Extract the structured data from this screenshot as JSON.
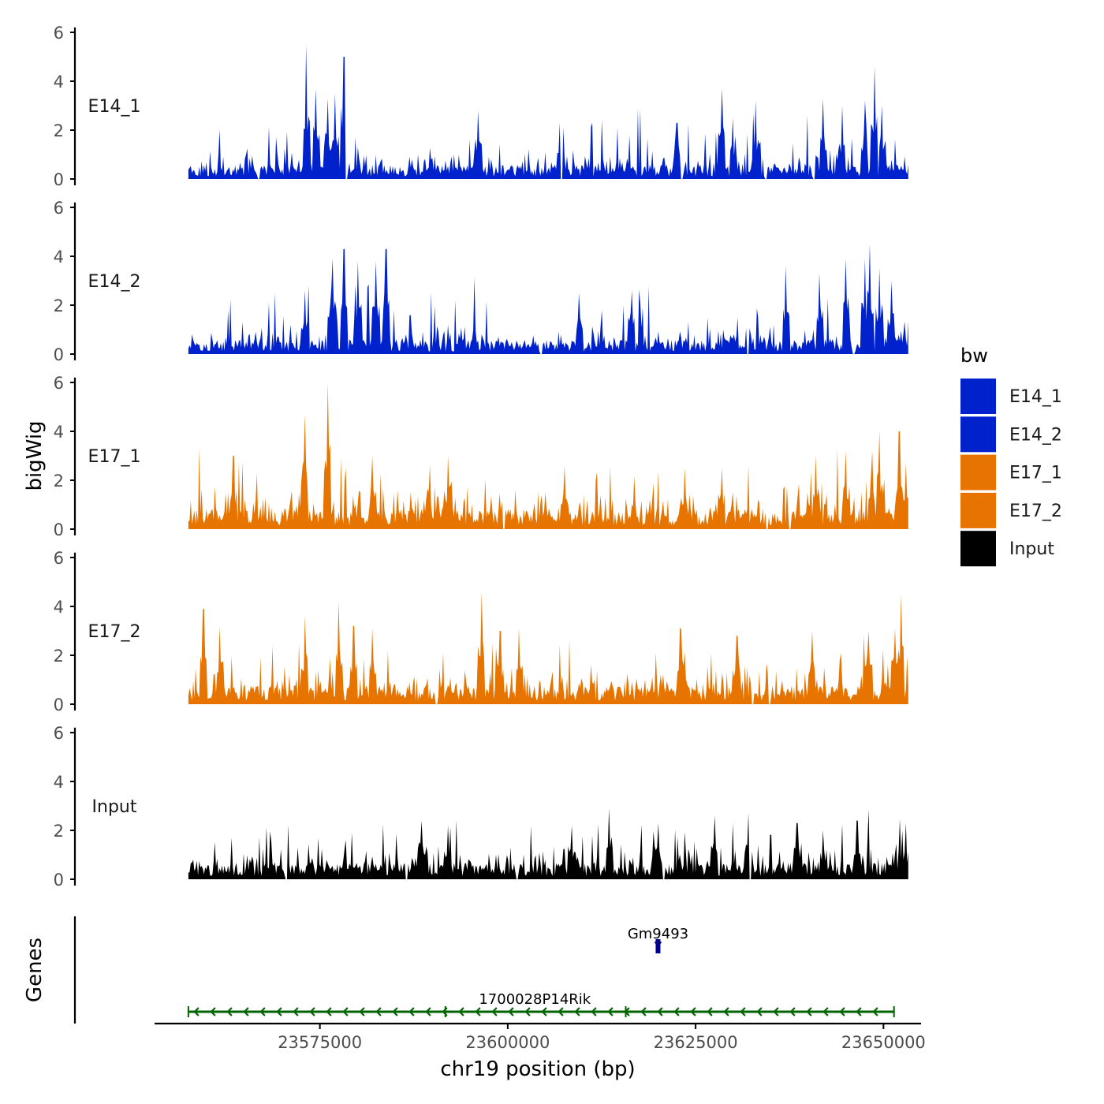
{
  "chart_data": {
    "type": "area",
    "layout": "stacked-tracks",
    "y_title": "bigWig",
    "x_title": "chr19 position (bp)",
    "y_ticks": [
      0,
      2,
      4,
      6
    ],
    "ylim": [
      0,
      6.2
    ],
    "xlim": [
      23553000,
      23655000
    ],
    "x_ticks": [
      23575000,
      23600000,
      23625000,
      23650000
    ],
    "x_tick_labels": [
      "23575000",
      "23600000",
      "23625000",
      "23650000"
    ],
    "data_range": [
      23557500,
      23653300
    ],
    "tracks": [
      {
        "name": "E14_1",
        "color": "#0022CC",
        "seed": 11,
        "base": 0.7,
        "peaks": [
          {
            "x": 23573200,
            "y": 5.5
          },
          {
            "x": 23578200,
            "y": 5.0
          },
          {
            "x": 23574500,
            "y": 3.7
          },
          {
            "x": 23576000,
            "y": 3.3
          },
          {
            "x": 23577000,
            "y": 3.5
          },
          {
            "x": 23596000,
            "y": 2.8
          },
          {
            "x": 23607000,
            "y": 2.3
          },
          {
            "x": 23622500,
            "y": 2.3
          },
          {
            "x": 23628500,
            "y": 3.7
          },
          {
            "x": 23630000,
            "y": 2.5
          },
          {
            "x": 23633000,
            "y": 3.2
          },
          {
            "x": 23642000,
            "y": 3.3
          },
          {
            "x": 23644500,
            "y": 3.0
          },
          {
            "x": 23647500,
            "y": 3.2
          },
          {
            "x": 23648800,
            "y": 4.6
          },
          {
            "x": 23649800,
            "y": 3.0
          }
        ],
        "zero_gaps": [
          23566900,
          23578500,
          23607200,
          23623100,
          23634400,
          23640800
        ]
      },
      {
        "name": "E14_2",
        "color": "#0022CC",
        "seed": 23,
        "base": 0.7,
        "peaks": [
          {
            "x": 23573000,
            "y": 2.6
          },
          {
            "x": 23576500,
            "y": 2.7
          },
          {
            "x": 23576700,
            "y": 3.9
          },
          {
            "x": 23578200,
            "y": 4.3
          },
          {
            "x": 23580000,
            "y": 3.8
          },
          {
            "x": 23582500,
            "y": 3.8
          },
          {
            "x": 23583800,
            "y": 4.3
          },
          {
            "x": 23609500,
            "y": 2.5
          },
          {
            "x": 23616500,
            "y": 2.6
          },
          {
            "x": 23637000,
            "y": 3.6
          },
          {
            "x": 23641500,
            "y": 3.3
          },
          {
            "x": 23645000,
            "y": 3.9
          },
          {
            "x": 23648200,
            "y": 4.5
          },
          {
            "x": 23647500,
            "y": 3.9
          },
          {
            "x": 23649500,
            "y": 3.5
          },
          {
            "x": 23651000,
            "y": 3.0
          }
        ],
        "zero_gaps": [
          23604500,
          23631900,
          23646000
        ]
      },
      {
        "name": "E17_1",
        "color": "#E87400",
        "seed": 37,
        "base": 1.0,
        "peaks": [
          {
            "x": 23573000,
            "y": 4.7
          },
          {
            "x": 23576000,
            "y": 6.0
          },
          {
            "x": 23563500,
            "y": 3.0
          },
          {
            "x": 23582000,
            "y": 3.0
          },
          {
            "x": 23592000,
            "y": 3.0
          },
          {
            "x": 23607500,
            "y": 2.6
          },
          {
            "x": 23623500,
            "y": 2.5
          },
          {
            "x": 23628500,
            "y": 2.5
          },
          {
            "x": 23641000,
            "y": 3.0
          },
          {
            "x": 23645000,
            "y": 3.2
          },
          {
            "x": 23648500,
            "y": 3.2
          },
          {
            "x": 23649500,
            "y": 4.0
          },
          {
            "x": 23652100,
            "y": 4.0
          },
          {
            "x": 23653000,
            "y": 2.7
          }
        ],
        "zero_gaps": [
          23599500,
          23634500,
          23637500
        ]
      },
      {
        "name": "E17_2",
        "color": "#E87400",
        "seed": 53,
        "base": 0.9,
        "peaks": [
          {
            "x": 23559500,
            "y": 3.9
          },
          {
            "x": 23561700,
            "y": 3.2
          },
          {
            "x": 23573000,
            "y": 3.6
          },
          {
            "x": 23577500,
            "y": 4.2
          },
          {
            "x": 23579500,
            "y": 3.2
          },
          {
            "x": 23582000,
            "y": 3.1
          },
          {
            "x": 23596500,
            "y": 4.6
          },
          {
            "x": 23599000,
            "y": 3.0
          },
          {
            "x": 23601500,
            "y": 3.1
          },
          {
            "x": 23623000,
            "y": 3.1
          },
          {
            "x": 23630500,
            "y": 2.8
          },
          {
            "x": 23640500,
            "y": 3.0
          },
          {
            "x": 23648000,
            "y": 3.0
          },
          {
            "x": 23651500,
            "y": 3.1
          },
          {
            "x": 23652300,
            "y": 4.5
          }
        ],
        "zero_gaps": [
          23590500,
          23632600,
          23634800
        ]
      },
      {
        "name": "Input",
        "color": "#000000",
        "seed": 71,
        "base": 0.8,
        "peaks": [
          {
            "x": 23588500,
            "y": 2.4
          },
          {
            "x": 23592000,
            "y": 2.2
          },
          {
            "x": 23608500,
            "y": 2.2
          },
          {
            "x": 23613500,
            "y": 2.9
          },
          {
            "x": 23620000,
            "y": 2.3
          },
          {
            "x": 23627500,
            "y": 2.6
          },
          {
            "x": 23632000,
            "y": 2.7
          },
          {
            "x": 23638500,
            "y": 2.3
          },
          {
            "x": 23642000,
            "y": 2.0
          },
          {
            "x": 23646500,
            "y": 2.4
          },
          {
            "x": 23652500,
            "y": 2.0
          }
        ],
        "zero_gaps": [
          23570500,
          23586500,
          23601200,
          23620800,
          23632300
        ]
      }
    ],
    "legend": {
      "title": "bw",
      "position": "right",
      "entries": [
        {
          "label": "E14_1",
          "color": "#0022CC"
        },
        {
          "label": "E14_2",
          "color": "#0022CC"
        },
        {
          "label": "E17_1",
          "color": "#E87400"
        },
        {
          "label": "E17_2",
          "color": "#E87400"
        },
        {
          "label": "Input",
          "color": "#000000"
        }
      ]
    },
    "genes_title": "Genes",
    "genes": [
      {
        "name": "Gm9493",
        "start": 23619800,
        "end": 23620200,
        "strand": "+",
        "color": "#00008B",
        "row": 1
      },
      {
        "name": "1700028P14Rik",
        "start": 23557500,
        "end": 23651400,
        "strand": "-",
        "color": "#006400",
        "row": 0,
        "exons": [
          23557500,
          23591700,
          23615700,
          23651400
        ]
      }
    ]
  }
}
